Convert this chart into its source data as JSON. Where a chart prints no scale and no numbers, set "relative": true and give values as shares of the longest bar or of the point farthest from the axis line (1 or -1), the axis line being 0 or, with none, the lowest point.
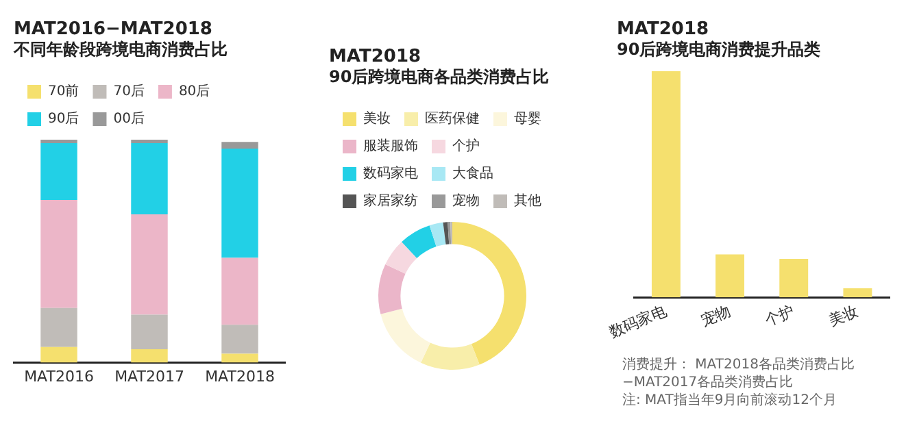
{
  "chart_data": [
    {
      "type": "bar",
      "title": "MAT2016−MAT2018",
      "subtitle": "不同年龄段跨境电商消费占比",
      "categories": [
        "MAT2016",
        "MAT2017",
        "MAT2018"
      ],
      "stacked": true,
      "relative": true,
      "legend": "top",
      "series": [
        {
          "name": "70前",
          "color": "#f5e06e",
          "values": [
            0.07,
            0.06,
            0.04
          ]
        },
        {
          "name": "70后",
          "color": "#c0bcb8",
          "values": [
            0.175,
            0.155,
            0.13
          ]
        },
        {
          "name": "80后",
          "color": "#ecb6c8",
          "values": [
            0.485,
            0.45,
            0.3
          ]
        },
        {
          "name": "90后",
          "color": "#22d0e6",
          "values": [
            0.255,
            0.32,
            0.49
          ]
        },
        {
          "name": "00后",
          "color": "#999999",
          "values": [
            0.015,
            0.015,
            0.03
          ]
        }
      ]
    },
    {
      "type": "donut",
      "title": "MAT2018",
      "subtitle": "90后跨境电商各品类消费占比",
      "legend": "top",
      "categories": [
        "美妆",
        "医药保健",
        "母婴",
        "服装服饰",
        "个护",
        "数码家电",
        "大食品",
        "家居家纺",
        "宠物",
        "其他"
      ],
      "values": [
        44,
        13,
        14,
        11,
        6,
        7,
        3,
        1,
        0.6,
        0.4
      ],
      "colors": [
        "#f5e06e",
        "#f8eeaa",
        "#fcf6dc",
        "#ebb6c9",
        "#f6d8e0",
        "#22d0e6",
        "#a8e8f4",
        "#555555",
        "#999999",
        "#c0bcb8"
      ]
    },
    {
      "type": "bar",
      "title": "MAT2018",
      "subtitle": "90后跨境电商消费提升品类",
      "categories": [
        "数码家电",
        "宠物",
        "个护",
        "美妆"
      ],
      "relative": true,
      "color": "#f5e06e",
      "values": [
        1,
        0.19,
        0.17,
        0.04
      ],
      "annotations": [
        "消费提升：  MAT2018各品类消费占比−MAT2017各品类消费占比",
        "注: MAT指当年9月向前滚动12个月"
      ]
    }
  ]
}
